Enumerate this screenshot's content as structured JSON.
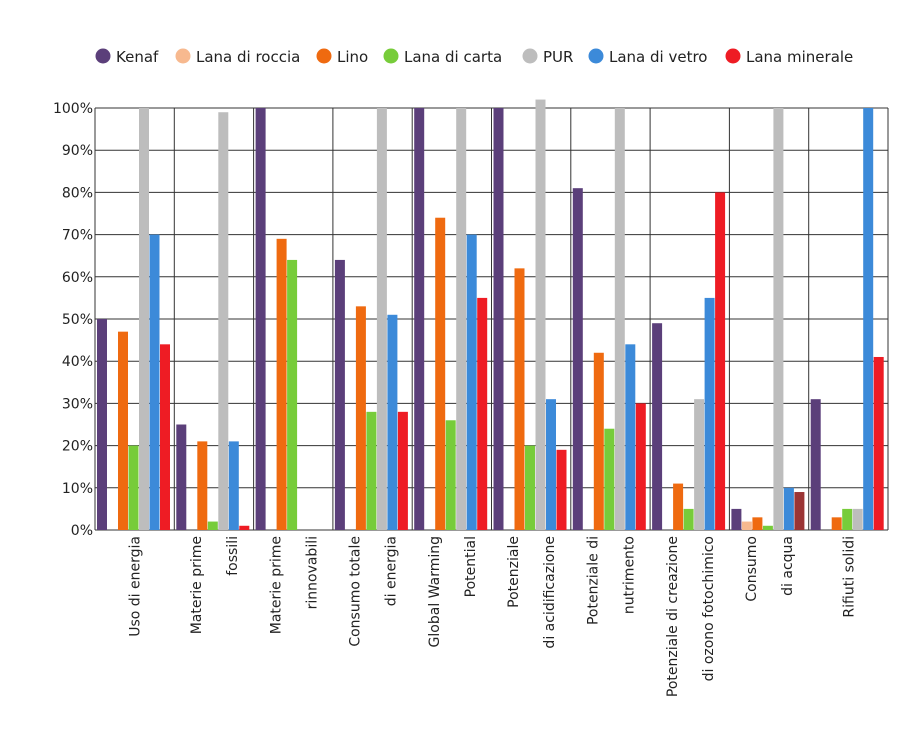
{
  "chart_data": {
    "type": "bar",
    "ylim": [
      0,
      100
    ],
    "yticks": [
      0,
      10,
      20,
      30,
      40,
      50,
      60,
      70,
      80,
      90,
      100
    ],
    "ytick_labels": [
      "0%",
      "10%",
      "20%",
      "30%",
      "40%",
      "50%",
      "60%",
      "70%",
      "80%",
      "90%",
      "100%"
    ],
    "grid": true,
    "legend_position": "top",
    "categories": [
      [
        "Uso di energia"
      ],
      [
        "Materie prime",
        "fossili"
      ],
      [
        "Materie prime",
        "rinnovabili"
      ],
      [
        "Consumo totale",
        "di energia"
      ],
      [
        "Global Warming",
        "Potential"
      ],
      [
        "Potenziale",
        "di acidificazione"
      ],
      [
        "Potenziale di",
        "nutrimento"
      ],
      [
        "Potenziale di creazione",
        "di ozono fotochimico"
      ],
      [
        "Consumo",
        "di acqua"
      ],
      [
        "Rifiuti solidi"
      ]
    ],
    "series": [
      {
        "name": "Kenaf",
        "color": "#5b3f7a",
        "values": [
          50,
          25,
          100,
          64,
          100,
          100,
          81,
          49,
          5,
          31
        ]
      },
      {
        "name": "Lana di roccia",
        "color": "#f7b98f",
        "values": [
          0,
          0,
          0,
          0,
          0,
          0,
          0,
          0,
          2,
          0
        ]
      },
      {
        "name": "Lino",
        "color": "#ef6a10",
        "values": [
          47,
          21,
          69,
          53,
          74,
          62,
          42,
          11,
          3,
          3
        ]
      },
      {
        "name": "Lana di carta",
        "color": "#77cc3a",
        "values": [
          20,
          2,
          64,
          28,
          26,
          20,
          24,
          5,
          1,
          5
        ]
      },
      {
        "name": "PUR",
        "color": "#bdbdbd",
        "values": [
          100,
          99,
          0,
          100,
          100,
          102,
          100,
          31,
          100,
          5
        ]
      },
      {
        "name": "Lana di vetro",
        "color": "#3c8ad9",
        "values": [
          70,
          21,
          0,
          51,
          70,
          31,
          44,
          55,
          10,
          100
        ]
      },
      {
        "name": "Lana minerale",
        "color": "#ee1c24",
        "values": [
          44,
          1,
          0,
          28,
          55,
          19,
          30,
          80,
          9,
          41
        ]
      }
    ],
    "bar_color_overrides": [
      {
        "series": "Lana minerale",
        "category_index": 8,
        "color": "#9b3535"
      }
    ]
  }
}
